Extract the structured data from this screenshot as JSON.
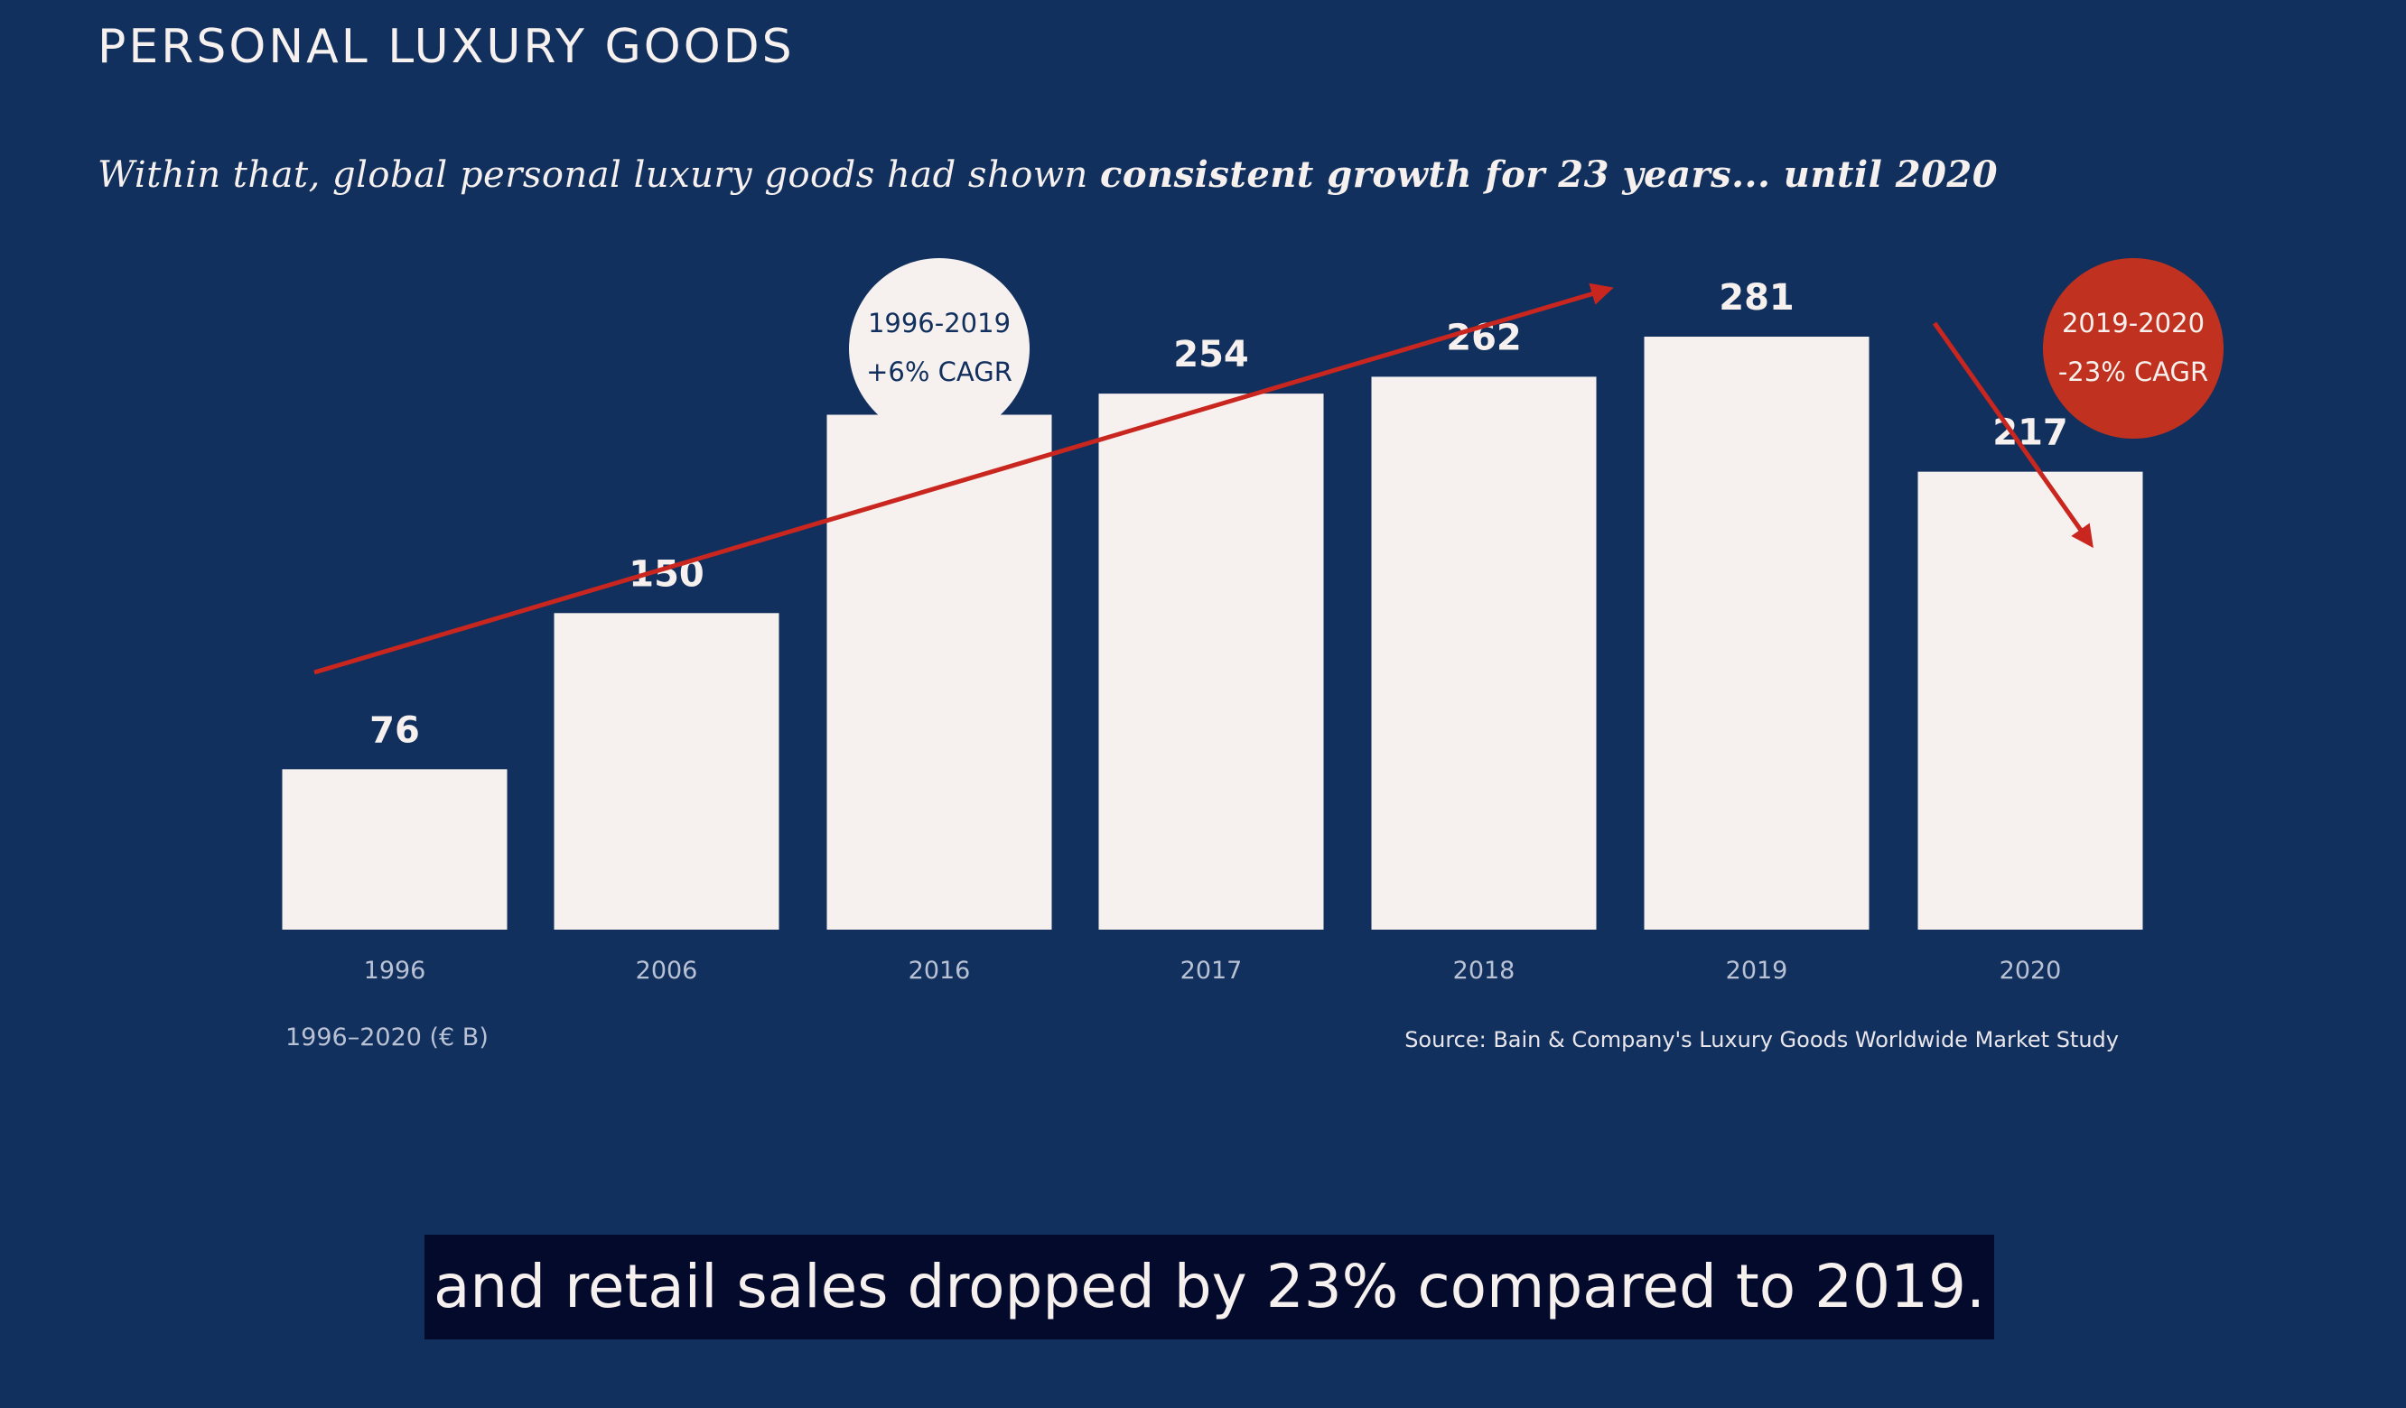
{
  "page": {
    "title": "PERSONAL LUXURY GOODS",
    "subtitle_plain": "Within that, global personal luxury goods had shown ",
    "subtitle_bold": "consistent growth for 23 years... until 2020",
    "caption": "and retail sales dropped by 23% compared to 2019."
  },
  "chart_data": {
    "type": "bar",
    "title": "",
    "categories": [
      "1996",
      "2006",
      "2016",
      "2017",
      "2018",
      "2019",
      "2020"
    ],
    "values": [
      76,
      150,
      244,
      254,
      262,
      281,
      217
    ],
    "units_label": "1996–2020 (€ B)",
    "source": "Source: Bain & Company's Luxury Goods Worldwide Market Study",
    "xlabel": "",
    "ylabel": "",
    "ylim": [
      0,
      320
    ],
    "grid": false,
    "annotations": [
      {
        "line1": "1996-2019",
        "line2": "+6% CAGR",
        "style": "light"
      },
      {
        "line1": "2019-2020",
        "line2": "-23% CAGR",
        "style": "red"
      }
    ],
    "colors": {
      "background": "#12305e",
      "bar": "#f6f1ee",
      "arrow": "#c8261e",
      "badge_red": "#c0321f",
      "badge_light": "#f6f1ee",
      "badge_light_text": "#12305e",
      "caption_bg": "#040a2c"
    }
  }
}
